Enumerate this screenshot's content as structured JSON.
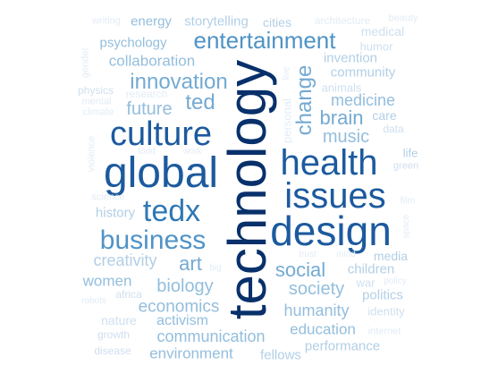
{
  "colors": {
    "c1": "#08306b",
    "c2": "#1c5a9e",
    "c3": "#2f78b5",
    "c4": "#4f93c6",
    "c5": "#73aad2",
    "c6": "#93bedd",
    "c7": "#b2cfe6",
    "c8": "#cfdfef",
    "c9": "#e2ecf6"
  },
  "words": [
    {
      "text": "technology",
      "tier": "c1"
    },
    {
      "text": "global",
      "tier": "c2"
    },
    {
      "text": "culture",
      "tier": "c2"
    },
    {
      "text": "design",
      "tier": "c2"
    },
    {
      "text": "health",
      "tier": "c2"
    },
    {
      "text": "issues",
      "tier": "c2"
    },
    {
      "text": "tedx",
      "tier": "c3"
    },
    {
      "text": "business",
      "tier": "c4"
    },
    {
      "text": "entertainment",
      "tier": "c4"
    },
    {
      "text": "change",
      "tier": "c5"
    },
    {
      "text": "innovation",
      "tier": "c5"
    },
    {
      "text": "ted",
      "tier": "c5"
    },
    {
      "text": "social",
      "tier": "c5"
    },
    {
      "text": "art",
      "tier": "c5"
    },
    {
      "text": "brain",
      "tier": "c5"
    },
    {
      "text": "music",
      "tier": "c6"
    },
    {
      "text": "future",
      "tier": "c6"
    },
    {
      "text": "society",
      "tier": "c6"
    },
    {
      "text": "biology",
      "tier": "c6"
    },
    {
      "text": "economics",
      "tier": "c6"
    },
    {
      "text": "medicine",
      "tier": "c6"
    },
    {
      "text": "creativity",
      "tier": "c7"
    },
    {
      "text": "communication",
      "tier": "c6"
    },
    {
      "text": "collaboration",
      "tier": "c6"
    },
    {
      "text": "humanity",
      "tier": "c6"
    },
    {
      "text": "women",
      "tier": "c6"
    },
    {
      "text": "environment",
      "tier": "c6"
    },
    {
      "text": "education",
      "tier": "c6"
    },
    {
      "text": "activism",
      "tier": "c6"
    },
    {
      "text": "psychology",
      "tier": "c6"
    },
    {
      "text": "energy",
      "tier": "c6"
    },
    {
      "text": "storytelling",
      "tier": "c7"
    },
    {
      "text": "history",
      "tier": "c7"
    },
    {
      "text": "community",
      "tier": "c7"
    },
    {
      "text": "invention",
      "tier": "c7"
    },
    {
      "text": "children",
      "tier": "c7"
    },
    {
      "text": "politics",
      "tier": "c7"
    },
    {
      "text": "performance",
      "tier": "c7"
    },
    {
      "text": "fellows",
      "tier": "c7"
    },
    {
      "text": "nature",
      "tier": "c8"
    },
    {
      "text": "cities",
      "tier": "c7"
    },
    {
      "text": "media",
      "tier": "c7"
    },
    {
      "text": "care",
      "tier": "c7"
    },
    {
      "text": "life",
      "tier": "c7"
    },
    {
      "text": "medical",
      "tier": "c8"
    },
    {
      "text": "humor",
      "tier": "c8"
    },
    {
      "text": "architecture",
      "tier": "c9"
    },
    {
      "text": "beauty",
      "tier": "c9"
    },
    {
      "text": "writing",
      "tier": "c9"
    },
    {
      "text": "gender",
      "tier": "c9"
    },
    {
      "text": "physics",
      "tier": "c8"
    },
    {
      "text": "research",
      "tier": "c9"
    },
    {
      "text": "mental",
      "tier": "c9"
    },
    {
      "text": "climate",
      "tier": "c9"
    },
    {
      "text": "live",
      "tier": "c9"
    },
    {
      "text": "personal",
      "tier": "c9"
    },
    {
      "text": "animals",
      "tier": "c8"
    },
    {
      "text": "data",
      "tier": "c8"
    },
    {
      "text": "green",
      "tier": "c8"
    },
    {
      "text": "violence",
      "tier": "c9"
    },
    {
      "text": "film",
      "tier": "c9"
    },
    {
      "text": "space",
      "tier": "c9"
    },
    {
      "text": "science",
      "tier": "c9"
    },
    {
      "text": "trust",
      "tier": "c9"
    },
    {
      "text": "mind",
      "tier": "c9"
    },
    {
      "text": "big",
      "tier": "c9"
    },
    {
      "text": "war",
      "tier": "c8"
    },
    {
      "text": "policy",
      "tier": "c9"
    },
    {
      "text": "africa",
      "tier": "c8"
    },
    {
      "text": "robots",
      "tier": "c9"
    },
    {
      "text": "identity",
      "tier": "c8"
    },
    {
      "text": "growth",
      "tier": "c8"
    },
    {
      "text": "internet",
      "tier": "c9"
    },
    {
      "text": "disease",
      "tier": "c8"
    },
    {
      "text": "food",
      "tier": "c9"
    },
    {
      "text": "work",
      "tier": "c9"
    }
  ]
}
